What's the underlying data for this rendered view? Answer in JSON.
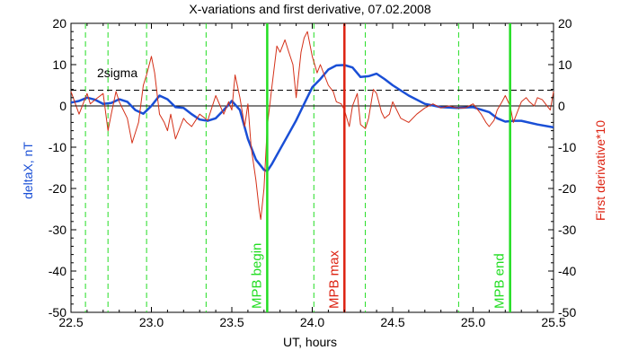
{
  "chart_data": {
    "type": "line",
    "title": "X-variations and first derivative, 07.02.2008",
    "xlabel": "UT, hours",
    "ylabel_left": "deltaX, nT",
    "ylabel_right": "First derivative*10",
    "xlim": [
      22.5,
      25.5
    ],
    "ylim_left": [
      -50,
      20
    ],
    "ylim_right": [
      -50,
      20
    ],
    "x_ticks": [
      "22.5",
      "23.0",
      "23.5",
      "24.0",
      "24.5",
      "25.0",
      "25.5"
    ],
    "x_tick_values": [
      22.5,
      23.0,
      23.5,
      24.0,
      24.5,
      25.0,
      25.5
    ],
    "y_ticks": [
      "20",
      "10",
      "0",
      "-10",
      "-20",
      "-30",
      "-40",
      "-50"
    ],
    "y_tick_values": [
      20,
      10,
      0,
      -10,
      -20,
      -30,
      -40,
      -50
    ],
    "colors": {
      "deltaX": "#1a4fd6",
      "derivative": "#d43018",
      "mpb_lines": "#22dd22",
      "mpb_max_line": "#dd2211",
      "title_text": "#000000",
      "left_label": "#1a4fd6",
      "right_label": "#dd2211"
    },
    "threshold": {
      "label": "2sigma",
      "value": 3.8
    },
    "zero_line": 0,
    "dashed_green_x": [
      22.59,
      22.73,
      22.97,
      23.34,
      24.01,
      24.33,
      24.91
    ],
    "markers": [
      {
        "label": "MPB begin",
        "x": 23.72,
        "kind": "begin"
      },
      {
        "label": "MPB max",
        "x": 24.2,
        "kind": "max"
      },
      {
        "label": "MPB end",
        "x": 25.23,
        "kind": "end"
      }
    ],
    "series": [
      {
        "name": "deltaX, nT",
        "axis": "left",
        "x": [
          22.5,
          22.55,
          22.6,
          22.65,
          22.7,
          22.75,
          22.8,
          22.85,
          22.9,
          22.95,
          23.0,
          23.05,
          23.1,
          23.15,
          23.2,
          23.25,
          23.3,
          23.35,
          23.4,
          23.45,
          23.5,
          23.55,
          23.6,
          23.65,
          23.7,
          23.72,
          23.75,
          23.8,
          23.85,
          23.9,
          23.95,
          24.0,
          24.05,
          24.1,
          24.15,
          24.2,
          24.25,
          24.3,
          24.35,
          24.4,
          24.45,
          24.5,
          24.6,
          24.7,
          24.8,
          24.9,
          25.0,
          25.1,
          25.15,
          25.2,
          25.25,
          25.3,
          25.4,
          25.5
        ],
        "y": [
          0.8,
          1.2,
          2.0,
          1.5,
          0.5,
          0.7,
          1.6,
          1.0,
          -1.0,
          -1.9,
          0.0,
          2.5,
          1.6,
          -0.3,
          -0.5,
          -2.0,
          -3.3,
          -3.6,
          -3.0,
          -1.0,
          1.2,
          -1.0,
          -8.0,
          -13.0,
          -15.5,
          -15.8,
          -14.0,
          -10.5,
          -7.0,
          -3.5,
          0.5,
          4.5,
          6.5,
          8.8,
          9.8,
          9.9,
          9.3,
          7.0,
          7.2,
          7.8,
          6.5,
          5.0,
          2.5,
          0.5,
          -0.3,
          -0.5,
          -0.3,
          -1.5,
          -3.0,
          -3.8,
          -3.6,
          -3.6,
          -4.5,
          -5.2
        ]
      },
      {
        "name": "First derivative*10",
        "axis": "right",
        "x": [
          22.5,
          22.55,
          22.6,
          22.62,
          22.65,
          22.7,
          22.73,
          22.75,
          22.78,
          22.8,
          22.85,
          22.88,
          22.92,
          22.95,
          22.97,
          23.0,
          23.02,
          23.05,
          23.08,
          23.1,
          23.12,
          23.15,
          23.18,
          23.2,
          23.22,
          23.25,
          23.3,
          23.35,
          23.4,
          23.45,
          23.48,
          23.5,
          23.52,
          23.55,
          23.58,
          23.6,
          23.62,
          23.65,
          23.67,
          23.68,
          23.7,
          23.72,
          23.75,
          23.78,
          23.8,
          23.83,
          23.85,
          23.88,
          23.9,
          23.93,
          23.95,
          23.97,
          24.0,
          24.03,
          24.05,
          24.08,
          24.1,
          24.13,
          24.15,
          24.18,
          24.2,
          24.23,
          24.25,
          24.28,
          24.3,
          24.33,
          24.35,
          24.38,
          24.4,
          24.43,
          24.45,
          24.48,
          24.5,
          24.55,
          24.6,
          24.65,
          24.7,
          24.75,
          24.8,
          24.85,
          24.9,
          24.95,
          25.0,
          25.05,
          25.08,
          25.1,
          25.13,
          25.15,
          25.18,
          25.2,
          25.23,
          25.25,
          25.28,
          25.3,
          25.33,
          25.35,
          25.38,
          25.4,
          25.43,
          25.45,
          25.48,
          25.5
        ],
        "y": [
          3.5,
          -2.0,
          3.0,
          0.5,
          1.5,
          3.0,
          -6.0,
          -2.0,
          3.5,
          1.0,
          -3.0,
          -9.0,
          -4.0,
          5.0,
          7.5,
          12.0,
          8.0,
          -2.0,
          -4.0,
          -6.0,
          -2.0,
          -8.0,
          -5.0,
          -3.0,
          -4.0,
          -5.0,
          -2.0,
          -3.5,
          2.5,
          -2.0,
          1.0,
          -1.0,
          7.5,
          2.0,
          -5.0,
          0.5,
          -10.0,
          -18.0,
          -25.0,
          -27.5,
          -20.0,
          -5.0,
          5.0,
          14.5,
          13.0,
          16.0,
          13.5,
          10.0,
          2.0,
          13.0,
          16.5,
          18.0,
          12.0,
          8.0,
          10.0,
          7.0,
          5.0,
          3.5,
          1.0,
          0.5,
          -1.0,
          -5.0,
          0.0,
          3.0,
          -4.5,
          -5.5,
          -3.0,
          4.0,
          3.0,
          -1.5,
          -3.0,
          -2.0,
          1.0,
          -3.0,
          -4.0,
          -2.0,
          -0.5,
          0.5,
          -0.5,
          0.0,
          -0.5,
          -0.5,
          0.5,
          -2.0,
          -4.0,
          -5.0,
          -3.5,
          -1.0,
          1.0,
          2.5,
          0.0,
          -4.0,
          -1.0,
          1.0,
          2.0,
          1.0,
          0.0,
          2.0,
          1.5,
          0.5,
          -1.0,
          3.5
        ]
      }
    ]
  }
}
